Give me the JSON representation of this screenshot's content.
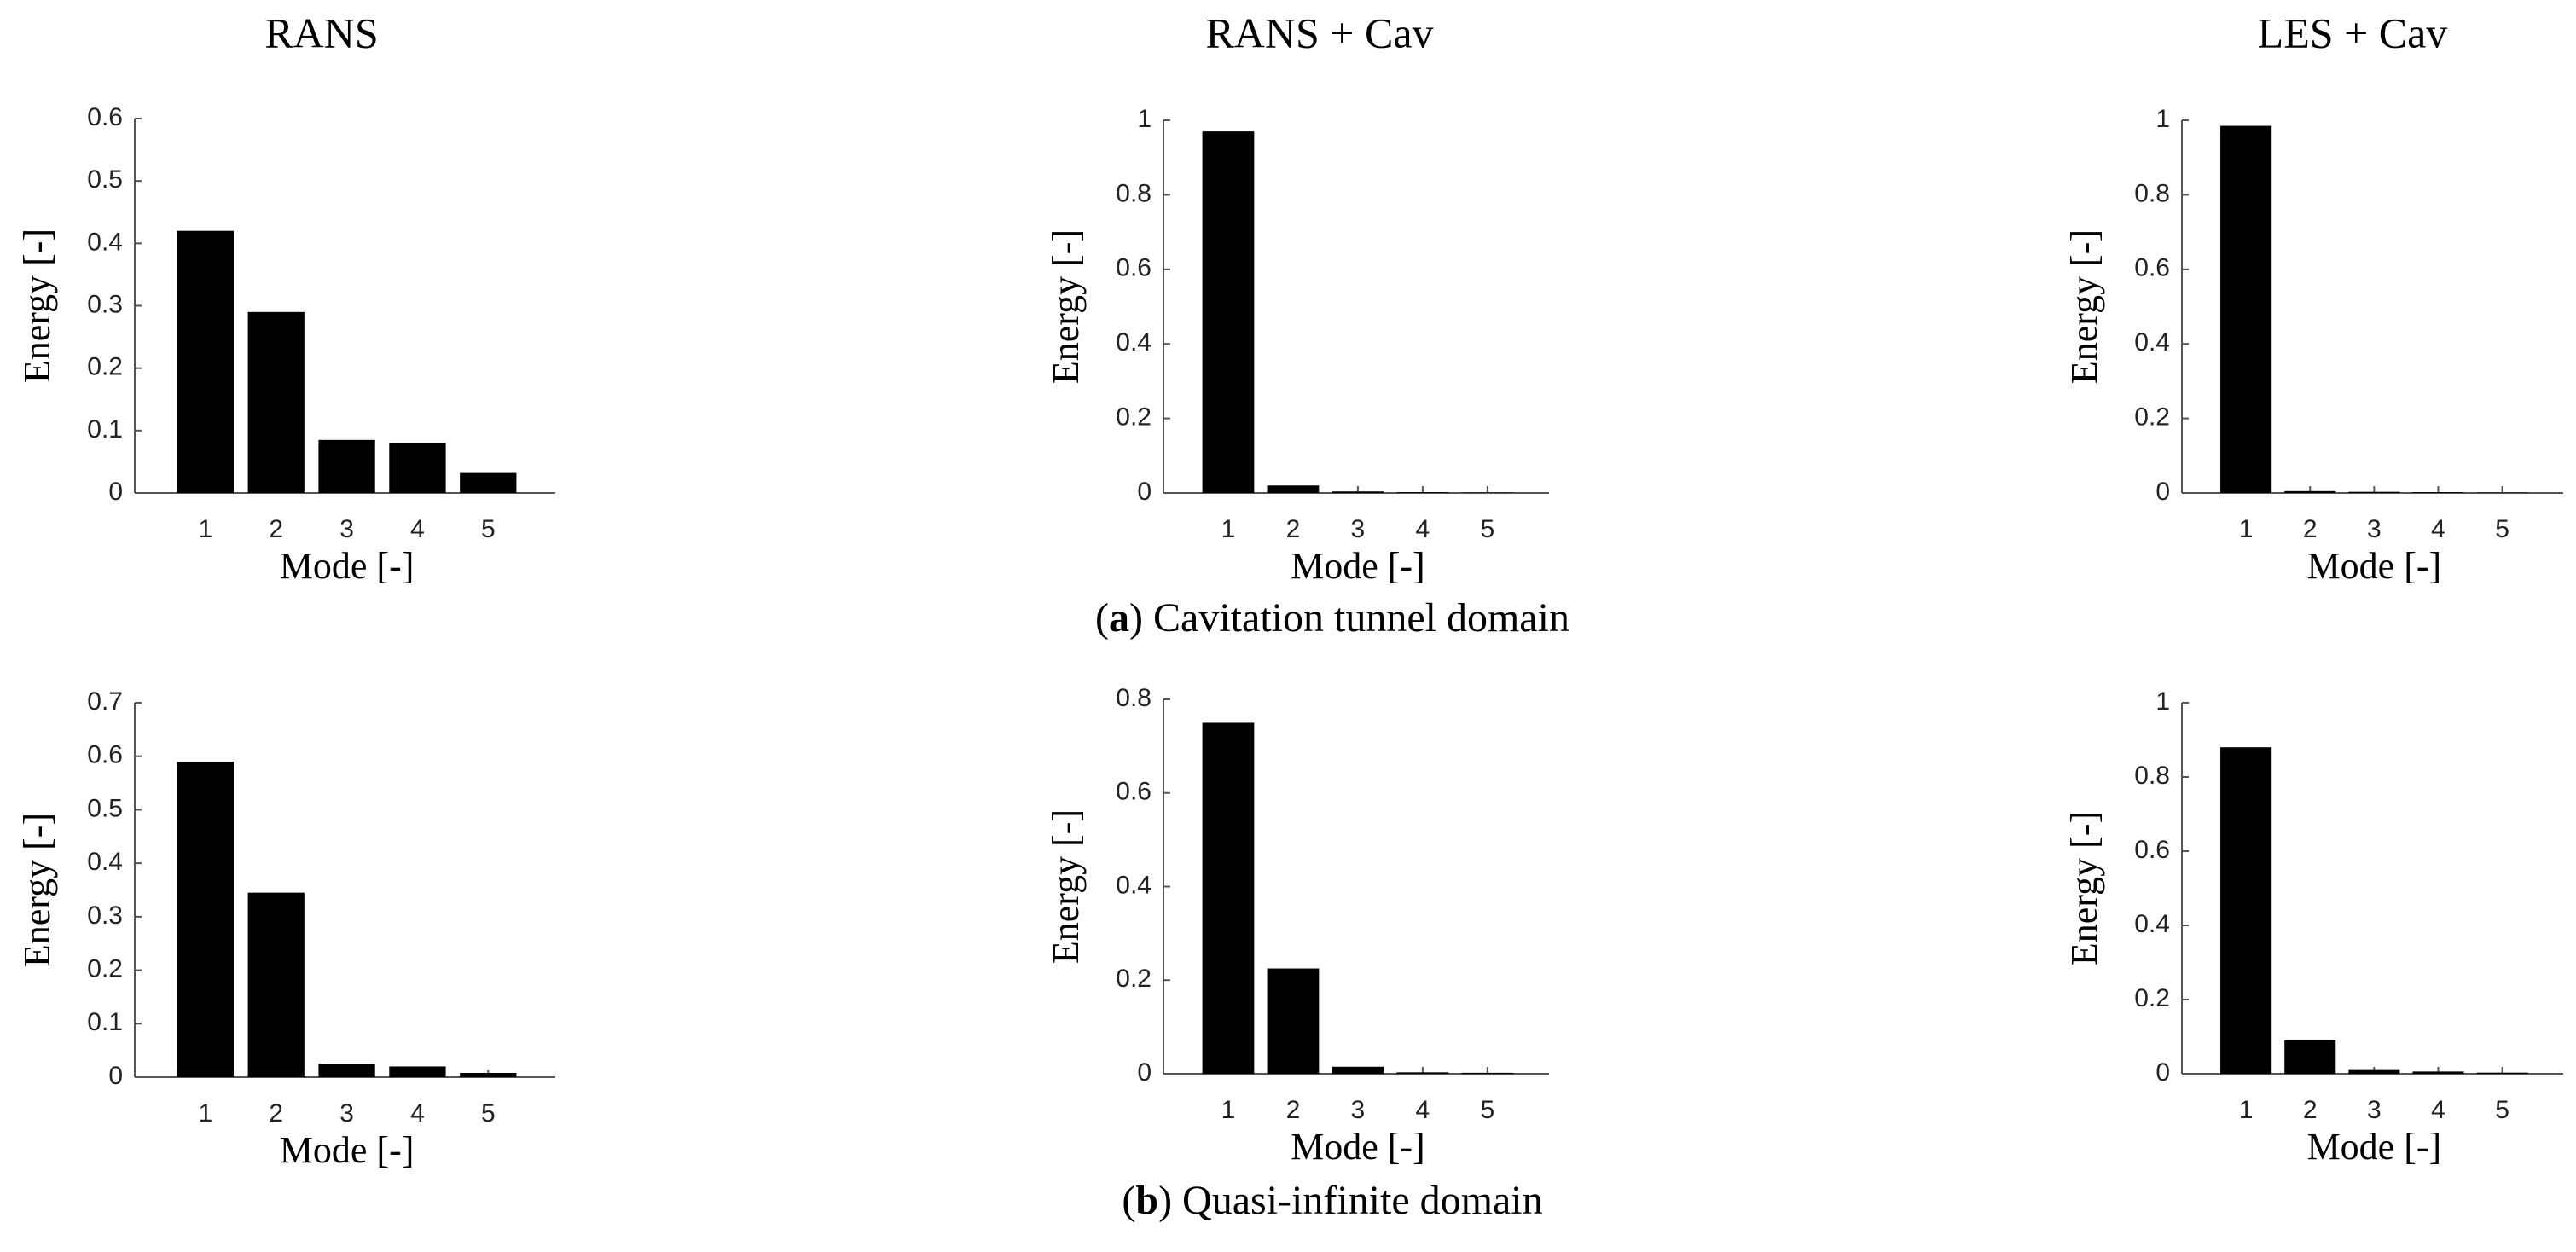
{
  "column_titles": [
    "RANS",
    "RANS + Cav",
    "LES + Cav"
  ],
  "captions": [
    {
      "prefix": "(",
      "letter": "a",
      "rest": ") Cavitation tunnel domain"
    },
    {
      "prefix": "(",
      "letter": "b",
      "rest": ") Quasi-infinite domain"
    }
  ],
  "chart_data": [
    {
      "type": "bar",
      "categories": [
        "1",
        "2",
        "3",
        "4",
        "5"
      ],
      "values": [
        0.42,
        0.29,
        0.085,
        0.08,
        0.032
      ],
      "color": "#000000",
      "ylim": [
        0,
        0.6
      ],
      "yticks": [
        0,
        0.1,
        0.2,
        0.3,
        0.4,
        0.5,
        0.6
      ],
      "xlabel": "Mode [-]",
      "ylabel": "Energy [-]"
    },
    {
      "type": "bar",
      "categories": [
        "1",
        "2",
        "3",
        "4",
        "5"
      ],
      "values": [
        0.97,
        0.02,
        0.004,
        0.002,
        0.001
      ],
      "color": "#000000",
      "ylim": [
        0,
        1
      ],
      "yticks": [
        0,
        0.2,
        0.4,
        0.6,
        0.8,
        1
      ],
      "xlabel": "Mode [-]",
      "ylabel": "Energy [-]"
    },
    {
      "type": "bar",
      "categories": [
        "1",
        "2",
        "3",
        "4",
        "5"
      ],
      "values": [
        0.985,
        0.005,
        0.003,
        0.002,
        0.001
      ],
      "color": "#000000",
      "ylim": [
        0,
        1
      ],
      "yticks": [
        0,
        0.2,
        0.4,
        0.6,
        0.8,
        1
      ],
      "xlabel": "Mode [-]",
      "ylabel": "Energy [-]"
    },
    {
      "type": "bar",
      "categories": [
        "1",
        "2",
        "3",
        "4",
        "5"
      ],
      "values": [
        0.59,
        0.345,
        0.025,
        0.02,
        0.008
      ],
      "color": "#000000",
      "ylim": [
        0,
        0.7
      ],
      "yticks": [
        0,
        0.1,
        0.2,
        0.3,
        0.4,
        0.5,
        0.6,
        0.7
      ],
      "xlabel": "Mode [-]",
      "ylabel": "Energy [-]"
    },
    {
      "type": "bar",
      "categories": [
        "1",
        "2",
        "3",
        "4",
        "5"
      ],
      "values": [
        0.75,
        0.225,
        0.015,
        0.003,
        0.002
      ],
      "color": "#000000",
      "ylim": [
        0,
        0.8
      ],
      "yticks": [
        0,
        0.2,
        0.4,
        0.6,
        0.8
      ],
      "xlabel": "Mode [-]",
      "ylabel": "Energy [-]"
    },
    {
      "type": "bar",
      "categories": [
        "1",
        "2",
        "3",
        "4",
        "5"
      ],
      "values": [
        0.88,
        0.09,
        0.01,
        0.006,
        0.003
      ],
      "color": "#000000",
      "ylim": [
        0,
        1
      ],
      "yticks": [
        0,
        0.2,
        0.4,
        0.6,
        0.8,
        1
      ],
      "xlabel": "Mode [-]",
      "ylabel": "Energy [-]"
    }
  ]
}
